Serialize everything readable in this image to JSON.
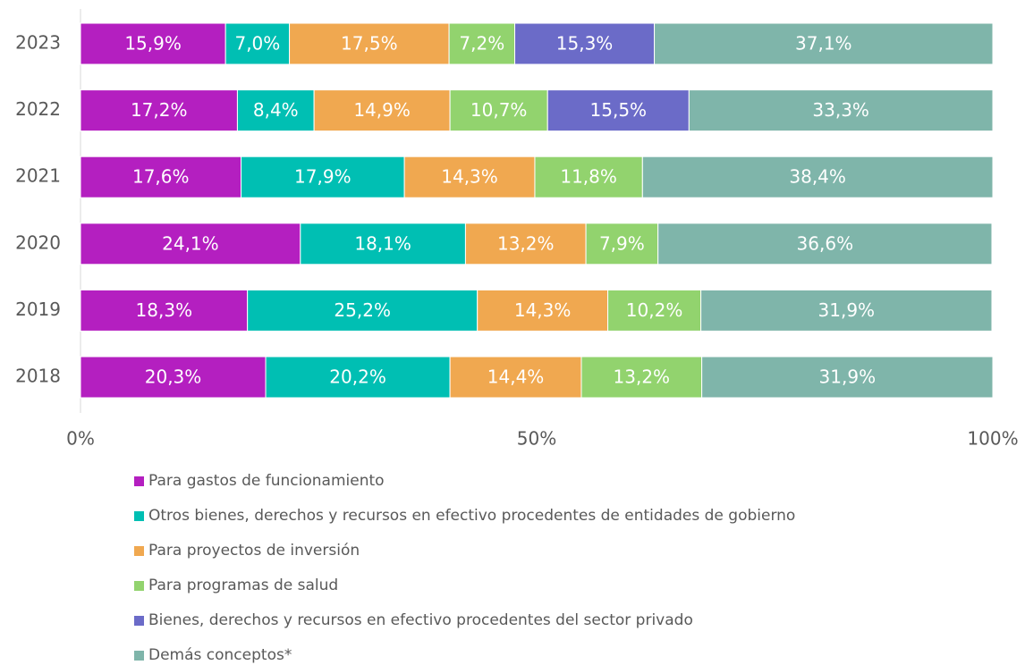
{
  "chart_data": {
    "type": "stacked_barh",
    "categories": [
      "2023",
      "2022",
      "2021",
      "2020",
      "2019",
      "2018"
    ],
    "series": [
      {
        "name": "Para gastos de funcionamiento",
        "color": "#b41fc0",
        "values": [
          15.9,
          17.2,
          17.6,
          24.1,
          18.3,
          20.3
        ],
        "value_labels": [
          "15,9%",
          "17,2%",
          "17,6%",
          "24,1%",
          "18,3%",
          "20,3%"
        ]
      },
      {
        "name": "Otros bienes, derechos y recursos en efectivo procedentes de entidades de gobierno",
        "color": "#00bfb3",
        "values": [
          7.0,
          8.4,
          17.9,
          18.1,
          25.2,
          20.2
        ],
        "value_labels": [
          "7,0%",
          "8,4%",
          "17,9%",
          "18,1%",
          "25,2%",
          "20,2%"
        ]
      },
      {
        "name": "Para proyectos de inversión",
        "color": "#f0a850",
        "values": [
          17.5,
          14.9,
          14.3,
          13.2,
          14.3,
          14.4
        ],
        "value_labels": [
          "17,5%",
          "14,9%",
          "14,3%",
          "13,2%",
          "14,3%",
          "14,4%"
        ]
      },
      {
        "name": "Para programas de salud",
        "color": "#92d36e",
        "values": [
          7.2,
          10.7,
          11.8,
          7.9,
          10.2,
          13.2
        ],
        "value_labels": [
          "7,2%",
          "10,7%",
          "11,8%",
          "7,9%",
          "10,2%",
          "13,2%"
        ]
      },
      {
        "name": "Bienes, derechos y recursos en efectivo procedentes del sector privado",
        "color": "#6b6bc8",
        "values": [
          15.3,
          15.5,
          null,
          null,
          null,
          null
        ],
        "value_labels": [
          "15,3%",
          "15,5%",
          null,
          null,
          null,
          null
        ]
      },
      {
        "name": "Demás conceptos*",
        "color": "#7fb5aa",
        "values": [
          37.1,
          33.3,
          38.4,
          36.6,
          31.9,
          31.9
        ],
        "value_labels": [
          "37,1%",
          "33,3%",
          "38,4%",
          "36,6%",
          "31,9%",
          "31,9%"
        ]
      }
    ],
    "xlim": [
      0,
      100
    ],
    "xticks": [
      {
        "value": 0,
        "label": "0%"
      },
      {
        "value": 50,
        "label": "50%"
      },
      {
        "value": 100,
        "label": "100%"
      }
    ]
  }
}
